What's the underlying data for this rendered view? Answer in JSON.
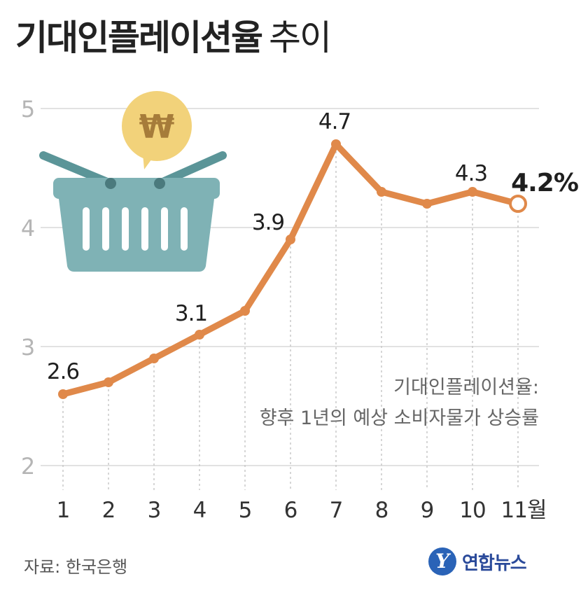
{
  "title": {
    "main": "기대인플레이션율",
    "sub": "추이"
  },
  "chart_data": {
    "type": "line",
    "categories": [
      "1",
      "2",
      "3",
      "4",
      "5",
      "6",
      "7",
      "8",
      "9",
      "10",
      "11월"
    ],
    "values": [
      2.6,
      2.7,
      2.9,
      3.1,
      3.3,
      3.9,
      4.7,
      4.3,
      4.2,
      4.3,
      4.2
    ],
    "data_labels": [
      {
        "index": 0,
        "text": "2.6"
      },
      {
        "index": 3,
        "text": "3.1"
      },
      {
        "index": 5,
        "text": "3.9"
      },
      {
        "index": 6,
        "text": "4.7"
      },
      {
        "index": 9,
        "text": "4.3"
      },
      {
        "index": 10,
        "text": "4.2%"
      }
    ],
    "yticks": [
      2,
      3,
      4,
      5
    ],
    "ylim": [
      2,
      5
    ],
    "grid": true,
    "line_color": "#e0894a",
    "highlight_last": true
  },
  "note": {
    "line1": "기대인플레이션율:",
    "line2": "향후 1년의 예상 소비자물가 상승률"
  },
  "source": "자료: 한국은행",
  "logo_text": "연합뉴스",
  "colors": {
    "line": "#e0894a",
    "grid": "#d9d9d9",
    "axis_text": "#b5b5b5",
    "basket": "#7fb2b5",
    "coin": "#f2d27a"
  }
}
